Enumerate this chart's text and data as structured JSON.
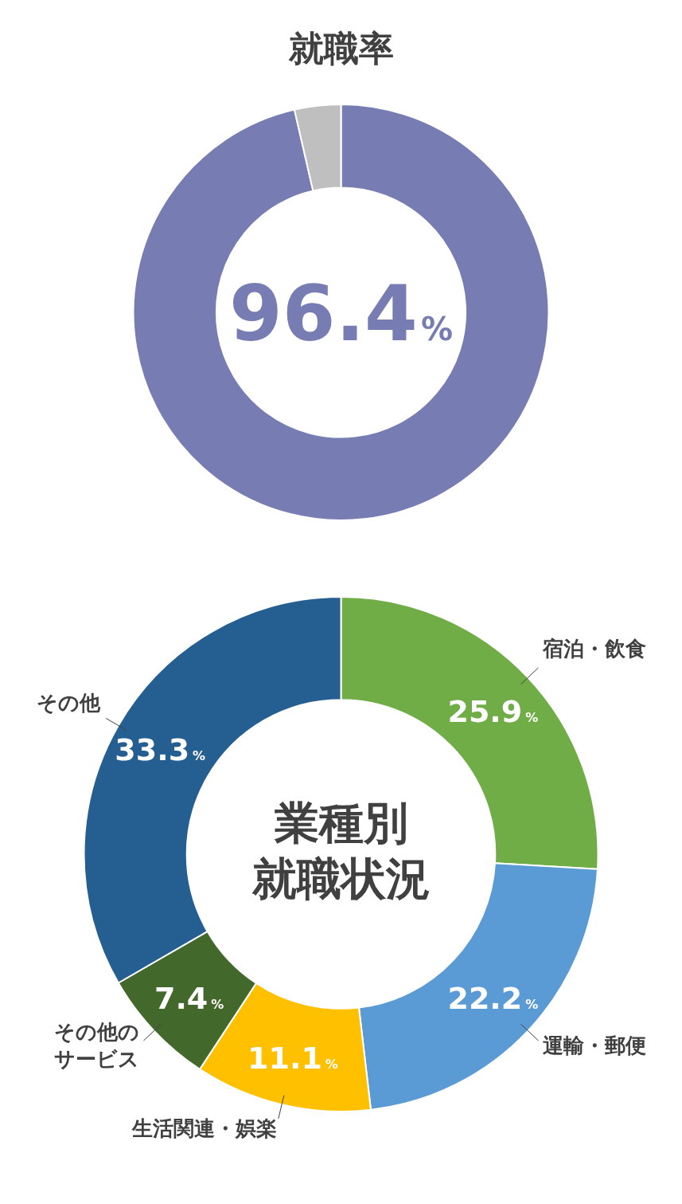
{
  "chart_data": [
    {
      "type": "donut",
      "title": "就職率",
      "categories": [
        null,
        null
      ],
      "values": [
        96.4,
        3.6
      ],
      "colors": [
        "#777db3",
        "#bfbfbf"
      ],
      "value_labels": [
        "96.4%",
        null
      ],
      "legend": false
    },
    {
      "type": "donut",
      "title": "業種別就職状況",
      "categories": [
        "宿泊・飲食",
        "運輸・郵便",
        "生活関連・娯楽",
        "その他のサービス",
        "その他"
      ],
      "values": [
        25.9,
        22.2,
        11.1,
        7.4,
        33.3
      ],
      "colors": [
        "#70ad47",
        "#5b9bd5",
        "#ffc000",
        "#43682b",
        "#255e91"
      ],
      "value_labels": [
        "25.9%",
        "22.2%",
        "11.1%",
        "7.4%",
        "33.3%"
      ],
      "legend": false
    }
  ]
}
